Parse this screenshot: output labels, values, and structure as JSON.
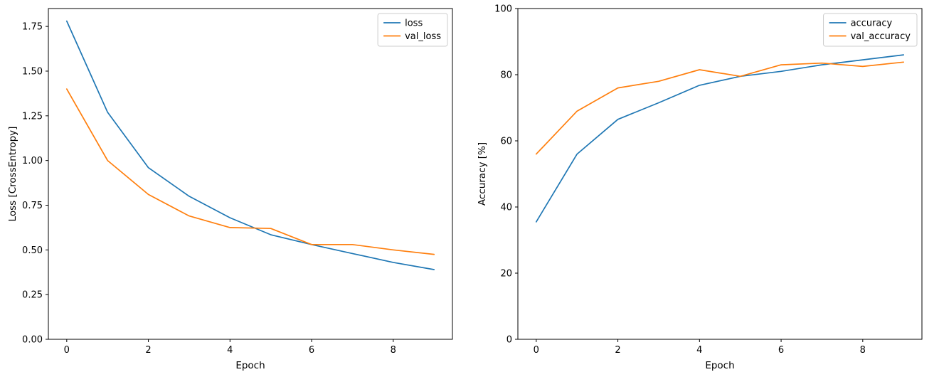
{
  "figure": {
    "background": "#ffffff",
    "spine_color": "#000000",
    "legend_border_color": "#cccccc"
  },
  "chart_data": [
    {
      "type": "line",
      "x": [
        0,
        1,
        2,
        3,
        4,
        5,
        6,
        7,
        8,
        9
      ],
      "series": [
        {
          "name": "loss",
          "color": "#1f77b4",
          "values": [
            1.78,
            1.27,
            0.96,
            0.8,
            0.68,
            0.585,
            0.53,
            0.48,
            0.43,
            0.39
          ]
        },
        {
          "name": "val_loss",
          "color": "#ff7f0e",
          "values": [
            1.4,
            1.0,
            0.81,
            0.69,
            0.625,
            0.62,
            0.53,
            0.53,
            0.5,
            0.475
          ]
        }
      ],
      "title": "",
      "xlabel": "Epoch",
      "ylabel": "Loss [CrossEntropy]",
      "xlim": [
        -0.45,
        9.45
      ],
      "ylim": [
        0,
        1.85
      ],
      "xticks": [
        0,
        2,
        4,
        6,
        8
      ],
      "xtick_labels": [
        "0",
        "2",
        "4",
        "6",
        "8"
      ],
      "yticks": [
        0,
        0.25,
        0.5,
        0.75,
        1.0,
        1.25,
        1.5,
        1.75
      ],
      "ytick_labels": [
        "0.00",
        "0.25",
        "0.50",
        "0.75",
        "1.00",
        "1.25",
        "1.50",
        "1.75"
      ],
      "grid": false,
      "legend_position": "top-right",
      "legend_entries": [
        "loss",
        "val_loss"
      ]
    },
    {
      "type": "line",
      "x": [
        0,
        1,
        2,
        3,
        4,
        5,
        6,
        7,
        8,
        9
      ],
      "series": [
        {
          "name": "accuracy",
          "color": "#1f77b4",
          "values": [
            35.5,
            56,
            66.5,
            71.5,
            76.8,
            79.5,
            81,
            83,
            84.5,
            86
          ]
        },
        {
          "name": "val_accuracy",
          "color": "#ff7f0e",
          "values": [
            56,
            69,
            76,
            78,
            81.5,
            79.5,
            83,
            83.5,
            82.5,
            83.8
          ]
        }
      ],
      "title": "",
      "xlabel": "Epoch",
      "ylabel": "Accuracy [%]",
      "xlim": [
        -0.45,
        9.45
      ],
      "ylim": [
        0,
        100
      ],
      "xticks": [
        0,
        2,
        4,
        6,
        8
      ],
      "xtick_labels": [
        "0",
        "2",
        "4",
        "6",
        "8"
      ],
      "yticks": [
        0,
        20,
        40,
        60,
        80,
        100
      ],
      "ytick_labels": [
        "0",
        "20",
        "40",
        "60",
        "80",
        "100"
      ],
      "grid": false,
      "legend_position": "top-right",
      "legend_entries": [
        "accuracy",
        "val_accuracy"
      ]
    }
  ]
}
